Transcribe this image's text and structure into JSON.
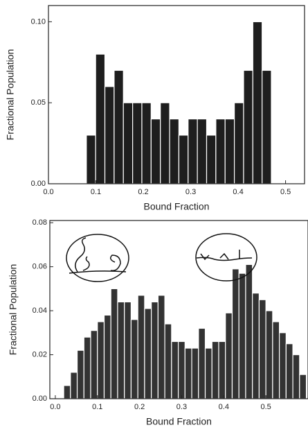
{
  "chart_data": [
    {
      "type": "histogram",
      "color": "#1e1e1e",
      "xlabel": "Bound Fraction",
      "ylabel": "Fractional Population",
      "bins": [
        0.08,
        0.0995,
        0.119,
        0.1385,
        0.158,
        0.1775,
        0.197,
        0.2165,
        0.236,
        0.2555,
        0.275,
        0.2945,
        0.314,
        0.3335,
        0.353,
        0.3725,
        0.392,
        0.4115,
        0.431,
        0.4505,
        0.47
      ],
      "values": [
        0.03,
        0.08,
        0.06,
        0.07,
        0.05,
        0.05,
        0.05,
        0.04,
        0.05,
        0.04,
        0.03,
        0.04,
        0.04,
        0.03,
        0.04,
        0.04,
        0.05,
        0.07,
        0.1,
        0.07
      ],
      "xlim": [
        0,
        0.54
      ],
      "ylim": [
        0,
        0.11
      ],
      "xticks": [
        {
          "value": 0,
          "label": "0.0"
        },
        0.1,
        0.2,
        0.3,
        0.4,
        0.5
      ],
      "yticks": [
        {
          "value": 0,
          "label": "0.00"
        },
        0.05,
        {
          "value": 0.1,
          "label": "0.10"
        }
      ]
    },
    {
      "type": "histogram",
      "color": "#333333",
      "xlabel": "Bound Fraction",
      "ylabel": "Fractional Population",
      "bins": [
        0.02,
        0.036,
        0.052,
        0.068,
        0.084,
        0.1,
        0.116,
        0.132,
        0.148,
        0.164,
        0.18,
        0.196,
        0.212,
        0.228,
        0.244,
        0.26,
        0.276,
        0.292,
        0.308,
        0.324,
        0.34,
        0.356,
        0.372,
        0.388,
        0.404,
        0.42,
        0.436,
        0.452,
        0.468,
        0.484,
        0.5,
        0.516,
        0.532,
        0.548,
        0.564,
        0.58,
        0.596
      ],
      "values": [
        0.006,
        0.012,
        0.022,
        0.028,
        0.031,
        0.035,
        0.038,
        0.05,
        0.044,
        0.044,
        0.036,
        0.047,
        0.041,
        0.044,
        0.047,
        0.034,
        0.026,
        0.026,
        0.023,
        0.023,
        0.032,
        0.023,
        0.026,
        0.026,
        0.039,
        0.059,
        0.057,
        0.061,
        0.048,
        0.045,
        0.04,
        0.035,
        0.03,
        0.025,
        0.02,
        0.011
      ],
      "xlim": [
        -0.013,
        0.6
      ],
      "ylim": [
        0,
        0.081
      ],
      "xticks": [
        {
          "value": 0,
          "label": "0.0"
        },
        0.1,
        0.2,
        0.3,
        0.4,
        0.5
      ],
      "yticks": [
        {
          "value": 0,
          "label": "0.00"
        },
        0.02,
        0.04,
        0.06,
        0.08
      ]
    }
  ]
}
